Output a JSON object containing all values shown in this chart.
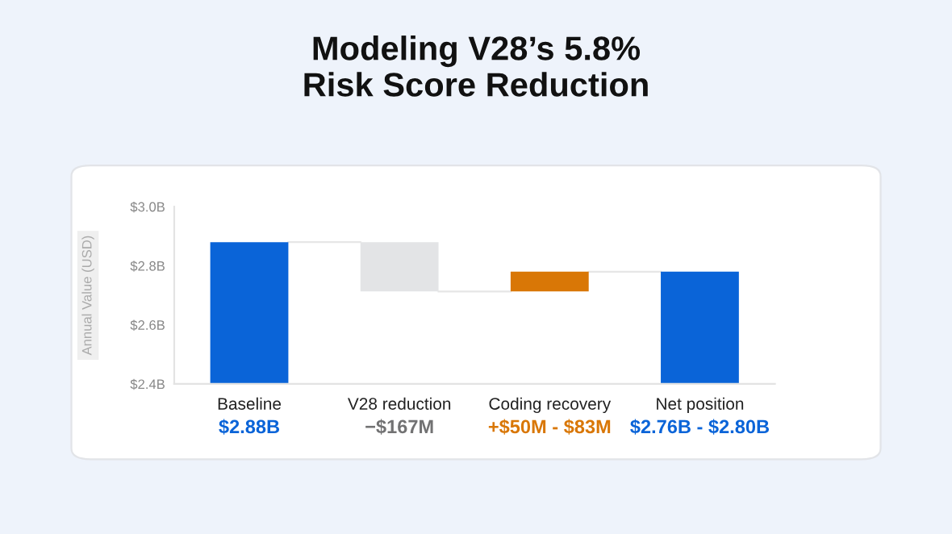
{
  "chart_data": {
    "type": "bar",
    "title": "Modeling V28’s 5.8%\nRisk Score Reduction",
    "ylabel": "Annual Value (USD)",
    "categories": [
      "Baseline",
      "V28 reduction",
      "Coding recovery",
      "Net position"
    ],
    "values": [
      2.88,
      -0.167,
      0.067,
      2.78
    ],
    "base": [
      0,
      2.88,
      2.713,
      0
    ],
    "colors": [
      "#0a64d8",
      "#e3e4e6",
      "#d97706",
      "#0a64d8"
    ],
    "annotations": [
      "$2.88B",
      "−$167M",
      "+$50M - $83M",
      "$2.76B - $2.80B"
    ],
    "ylim": [
      2.4,
      3.0
    ],
    "yticks": [
      {
        "value": 2.4,
        "label": "$2.4B"
      },
      {
        "value": 2.6,
        "label": "$2.6B"
      },
      {
        "value": 2.8,
        "label": "$2.8B"
      },
      {
        "value": 3.0,
        "label": "$3.0B"
      }
    ],
    "grid": false,
    "legend": false
  }
}
